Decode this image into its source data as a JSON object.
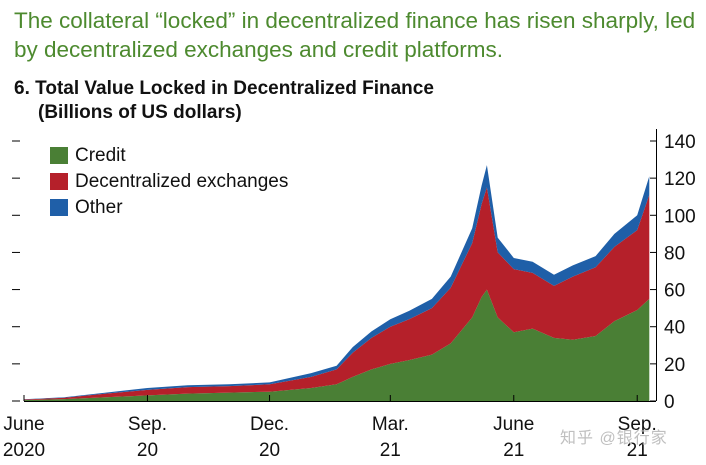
{
  "headline": "The collateral “locked” in decentralized finance has risen sharply, led by decentralized exchanges and credit platforms.",
  "chart_title": {
    "number": "6.",
    "line1": "Total Value Locked in Decentralized Finance",
    "line2": "(Billions of US dollars)"
  },
  "watermark": "知乎 @银行家",
  "chart_data": {
    "type": "area",
    "stacked": true,
    "title": "Total Value Locked in Decentralized Finance",
    "ylabel": "Billions of US dollars",
    "ylim": [
      0,
      140
    ],
    "yticks": [
      0,
      20,
      40,
      60,
      80,
      100,
      120,
      140
    ],
    "y_axis_side": "right",
    "legend_position": "top-left",
    "x_range": [
      "2020-06-01",
      "2021-09-15"
    ],
    "x_ticks": [
      {
        "date": "2020-06-01",
        "label1": "June",
        "label2": "2020"
      },
      {
        "date": "2020-09-01",
        "label1": "Sep.",
        "label2": "20"
      },
      {
        "date": "2020-12-01",
        "label1": "Dec.",
        "label2": "20"
      },
      {
        "date": "2021-03-01",
        "label1": "Mar.",
        "label2": "21"
      },
      {
        "date": "2021-06-01",
        "label1": "June",
        "label2": "21"
      },
      {
        "date": "2021-09-01",
        "label1": "Sep.",
        "label2": "21"
      }
    ],
    "x": [
      "2020-06-01",
      "2020-07-01",
      "2020-08-01",
      "2020-09-01",
      "2020-10-01",
      "2020-11-01",
      "2020-12-01",
      "2021-01-01",
      "2021-01-20",
      "2021-02-01",
      "2021-02-15",
      "2021-03-01",
      "2021-03-15",
      "2021-04-01",
      "2021-04-15",
      "2021-05-01",
      "2021-05-08",
      "2021-05-12",
      "2021-05-20",
      "2021-06-01",
      "2021-06-15",
      "2021-07-01",
      "2021-07-15",
      "2021-08-01",
      "2021-08-15",
      "2021-09-01",
      "2021-09-10"
    ],
    "series": [
      {
        "name": "Credit",
        "color": "#4a7f35",
        "values": [
          0.5,
          1.0,
          2.0,
          3.0,
          4.0,
          4.5,
          5.0,
          7.0,
          9.0,
          13.0,
          17.0,
          20.0,
          22.0,
          25.0,
          31.0,
          45.0,
          56.0,
          60.0,
          45.0,
          37.0,
          39.0,
          34.0,
          33.0,
          35.0,
          43.0,
          49.0,
          55.0
        ]
      },
      {
        "name": "Decentralized exchanges",
        "color": "#b5202a",
        "values": [
          0.3,
          0.8,
          2.0,
          3.0,
          3.5,
          3.5,
          4.0,
          6.0,
          8.0,
          13.0,
          17.0,
          20.0,
          22.0,
          25.0,
          30.0,
          40.0,
          50.0,
          55.0,
          35.0,
          34.0,
          30.0,
          28.0,
          34.0,
          37.0,
          40.0,
          43.0,
          56.0
        ]
      },
      {
        "name": "Other",
        "color": "#1f5fa8",
        "values": [
          0.1,
          0.2,
          0.5,
          1.0,
          1.0,
          1.0,
          1.0,
          2.0,
          2.0,
          3.0,
          3.5,
          4.0,
          4.5,
          5.0,
          6.0,
          8.0,
          10.0,
          12.0,
          8.0,
          6.0,
          6.0,
          6.0,
          6.0,
          6.0,
          7.0,
          8.0,
          10.0
        ]
      }
    ]
  }
}
